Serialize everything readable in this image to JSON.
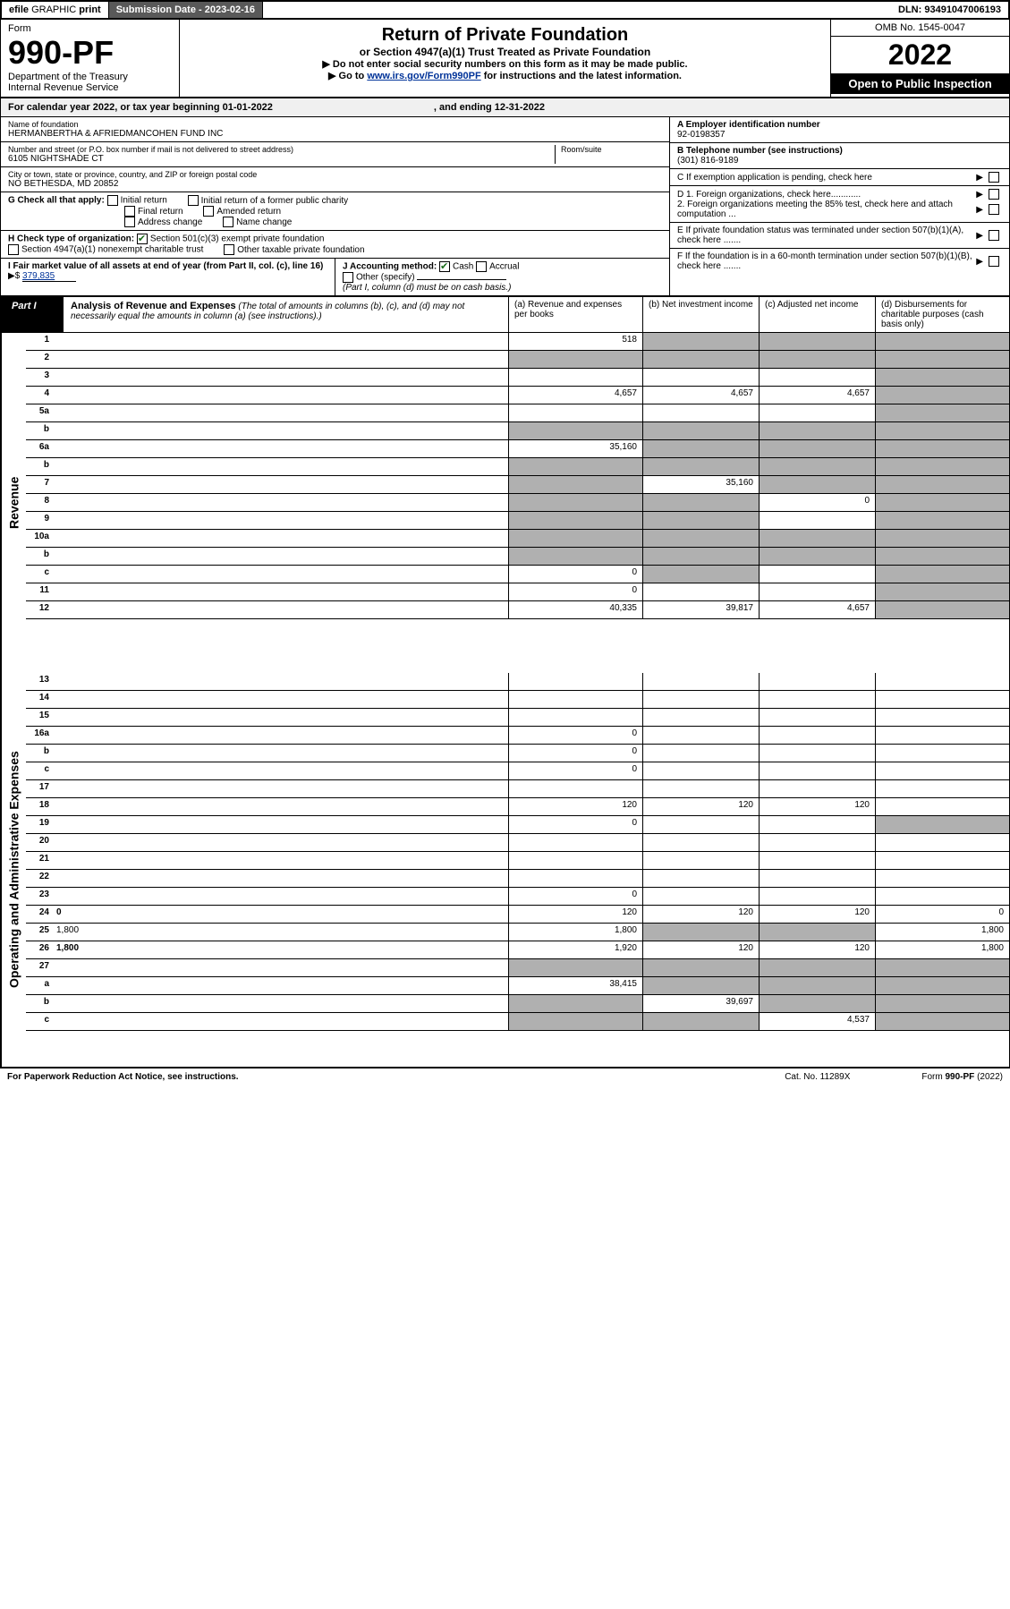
{
  "topbar": {
    "efile": "efile",
    "graphic": "GRAPHIC",
    "print": "print",
    "sub_label": "Submission Date - 2023-02-16",
    "dln": "DLN: 93491047006193"
  },
  "header": {
    "form": "Form",
    "form_no": "990-PF",
    "dept": "Department of the Treasury",
    "irs": "Internal Revenue Service",
    "title": "Return of Private Foundation",
    "subtitle": "or Section 4947(a)(1) Trust Treated as Private Foundation",
    "note1": "▶ Do not enter social security numbers on this form as it may be made public.",
    "note2_pre": "▶ Go to ",
    "note2_link": "www.irs.gov/Form990PF",
    "note2_post": " for instructions and the latest information.",
    "omb": "OMB No. 1545-0047",
    "year": "2022",
    "open": "Open to Public Inspection"
  },
  "cal": {
    "text": "For calendar year 2022, or tax year beginning 01-01-2022",
    "end": ", and ending 12-31-2022"
  },
  "info": {
    "name_lbl": "Name of foundation",
    "name": "HERMANBERTHA & AFRIEDMANCOHEN FUND INC",
    "addr_lbl": "Number and street (or P.O. box number if mail is not delivered to street address)",
    "addr": "6105 NIGHTSHADE CT",
    "room_lbl": "Room/suite",
    "city_lbl": "City or town, state or province, country, and ZIP or foreign postal code",
    "city": "NO BETHESDA, MD  20852",
    "a_lbl": "A Employer identification number",
    "a_val": "92-0198357",
    "b_lbl": "B Telephone number (see instructions)",
    "b_val": "(301) 816-9189",
    "c_lbl": "C If exemption application is pending, check here",
    "d1_lbl": "D 1. Foreign organizations, check here............",
    "d2_lbl": "2. Foreign organizations meeting the 85% test, check here and attach computation ...",
    "e_lbl": "E  If private foundation status was terminated under section 507(b)(1)(A), check here .......",
    "f_lbl": "F  If the foundation is in a 60-month termination under section 507(b)(1)(B), check here .......",
    "g_lbl": "G Check all that apply:",
    "g_opts": [
      "Initial return",
      "Initial return of a former public charity",
      "Final return",
      "Amended return",
      "Address change",
      "Name change"
    ],
    "h_lbl": "H Check type of organization:",
    "h_opt1": "Section 501(c)(3) exempt private foundation",
    "h_opt2": "Section 4947(a)(1) nonexempt charitable trust",
    "h_opt3": "Other taxable private foundation",
    "i_lbl": "I Fair market value of all assets at end of year (from Part II, col. (c), line 16)",
    "i_val": "379,835",
    "j_lbl": "J Accounting method:",
    "j_cash": "Cash",
    "j_acc": "Accrual",
    "j_other": "Other (specify)",
    "j_note": "(Part I, column (d) must be on cash basis.)"
  },
  "part1": {
    "lbl": "Part I",
    "title": "Analysis of Revenue and Expenses",
    "desc": "(The total of amounts in columns (b), (c), and (d) may not necessarily equal the amounts in column (a) (see instructions).)",
    "col_a": "(a)   Revenue and expenses per books",
    "col_b": "(b)   Net investment income",
    "col_c": "(c)   Adjusted net income",
    "col_d": "(d)   Disbursements for charitable purposes (cash basis only)"
  },
  "side": {
    "rev": "Revenue",
    "exp": "Operating and Administrative Expenses"
  },
  "rows": [
    {
      "n": "1",
      "d": "",
      "a": "518",
      "b": "",
      "c": "",
      "shade_b": true,
      "shade_c": true,
      "shade_d": true
    },
    {
      "n": "2",
      "d": "",
      "a": "",
      "b": "",
      "c": "",
      "shade_a": true,
      "shade_b": true,
      "shade_c": true,
      "shade_d": true
    },
    {
      "n": "3",
      "d": "",
      "a": "",
      "b": "",
      "c": "",
      "shade_d": true
    },
    {
      "n": "4",
      "d": "",
      "a": "4,657",
      "b": "4,657",
      "c": "4,657",
      "shade_d": true
    },
    {
      "n": "5a",
      "d": "",
      "a": "",
      "b": "",
      "c": "",
      "shade_d": true
    },
    {
      "n": "b",
      "d": "",
      "a": "",
      "b": "",
      "c": "",
      "shade_a": true,
      "shade_b": true,
      "shade_c": true,
      "shade_d": true
    },
    {
      "n": "6a",
      "d": "",
      "a": "35,160",
      "b": "",
      "c": "",
      "shade_b": true,
      "shade_c": true,
      "shade_d": true
    },
    {
      "n": "b",
      "d": "",
      "a": "",
      "b": "",
      "c": "",
      "shade_a": true,
      "shade_b": true,
      "shade_c": true,
      "shade_d": true
    },
    {
      "n": "7",
      "d": "",
      "a": "",
      "b": "35,160",
      "c": "",
      "shade_a": true,
      "shade_c": true,
      "shade_d": true
    },
    {
      "n": "8",
      "d": "",
      "a": "",
      "b": "",
      "c": "0",
      "shade_a": true,
      "shade_b": true,
      "shade_d": true
    },
    {
      "n": "9",
      "d": "",
      "a": "",
      "b": "",
      "c": "",
      "shade_a": true,
      "shade_b": true,
      "shade_d": true
    },
    {
      "n": "10a",
      "d": "",
      "a": "",
      "b": "",
      "c": "",
      "shade_a": true,
      "shade_b": true,
      "shade_c": true,
      "shade_d": true
    },
    {
      "n": "b",
      "d": "",
      "a": "",
      "b": "",
      "c": "",
      "shade_a": true,
      "shade_b": true,
      "shade_c": true,
      "shade_d": true
    },
    {
      "n": "c",
      "d": "",
      "a": "0",
      "b": "",
      "c": "",
      "shade_b": true,
      "shade_d": true
    },
    {
      "n": "11",
      "d": "",
      "a": "0",
      "b": "",
      "c": "",
      "shade_d": true
    },
    {
      "n": "12",
      "d": "",
      "a": "40,335",
      "b": "39,817",
      "c": "4,657",
      "bold": true,
      "shade_d": true
    }
  ],
  "exp_rows": [
    {
      "n": "13",
      "d": "",
      "a": "",
      "b": "",
      "c": ""
    },
    {
      "n": "14",
      "d": "",
      "a": "",
      "b": "",
      "c": ""
    },
    {
      "n": "15",
      "d": "",
      "a": "",
      "b": "",
      "c": ""
    },
    {
      "n": "16a",
      "d": "",
      "a": "0",
      "b": "",
      "c": ""
    },
    {
      "n": "b",
      "d": "",
      "a": "0",
      "b": "",
      "c": ""
    },
    {
      "n": "c",
      "d": "",
      "a": "0",
      "b": "",
      "c": ""
    },
    {
      "n": "17",
      "d": "",
      "a": "",
      "b": "",
      "c": ""
    },
    {
      "n": "18",
      "d": "",
      "a": "120",
      "b": "120",
      "c": "120"
    },
    {
      "n": "19",
      "d": "",
      "a": "0",
      "b": "",
      "c": "",
      "shade_d": true
    },
    {
      "n": "20",
      "d": "",
      "a": "",
      "b": "",
      "c": ""
    },
    {
      "n": "21",
      "d": "",
      "a": "",
      "b": "",
      "c": ""
    },
    {
      "n": "22",
      "d": "",
      "a": "",
      "b": "",
      "c": ""
    },
    {
      "n": "23",
      "d": "",
      "a": "0",
      "b": "",
      "c": ""
    },
    {
      "n": "24",
      "d": "0",
      "a": "120",
      "b": "120",
      "c": "120",
      "bold": true
    },
    {
      "n": "25",
      "d": "1,800",
      "a": "1,800",
      "b": "",
      "c": "",
      "shade_b": true,
      "shade_c": true
    },
    {
      "n": "26",
      "d": "1,800",
      "a": "1,920",
      "b": "120",
      "c": "120",
      "bold": true
    },
    {
      "n": "27",
      "d": "",
      "a": "",
      "b": "",
      "c": "",
      "shade_a": true,
      "shade_b": true,
      "shade_c": true,
      "shade_d": true
    },
    {
      "n": "a",
      "d": "",
      "a": "38,415",
      "b": "",
      "c": "",
      "bold": true,
      "shade_b": true,
      "shade_c": true,
      "shade_d": true
    },
    {
      "n": "b",
      "d": "",
      "a": "",
      "b": "39,697",
      "c": "",
      "bold": true,
      "shade_a": true,
      "shade_c": true,
      "shade_d": true
    },
    {
      "n": "c",
      "d": "",
      "a": "",
      "b": "",
      "c": "4,537",
      "bold": true,
      "shade_a": true,
      "shade_b": true,
      "shade_d": true
    }
  ],
  "footer": {
    "left": "For Paperwork Reduction Act Notice, see instructions.",
    "mid": "Cat. No. 11289X",
    "right": "Form 990-PF (2022)"
  }
}
